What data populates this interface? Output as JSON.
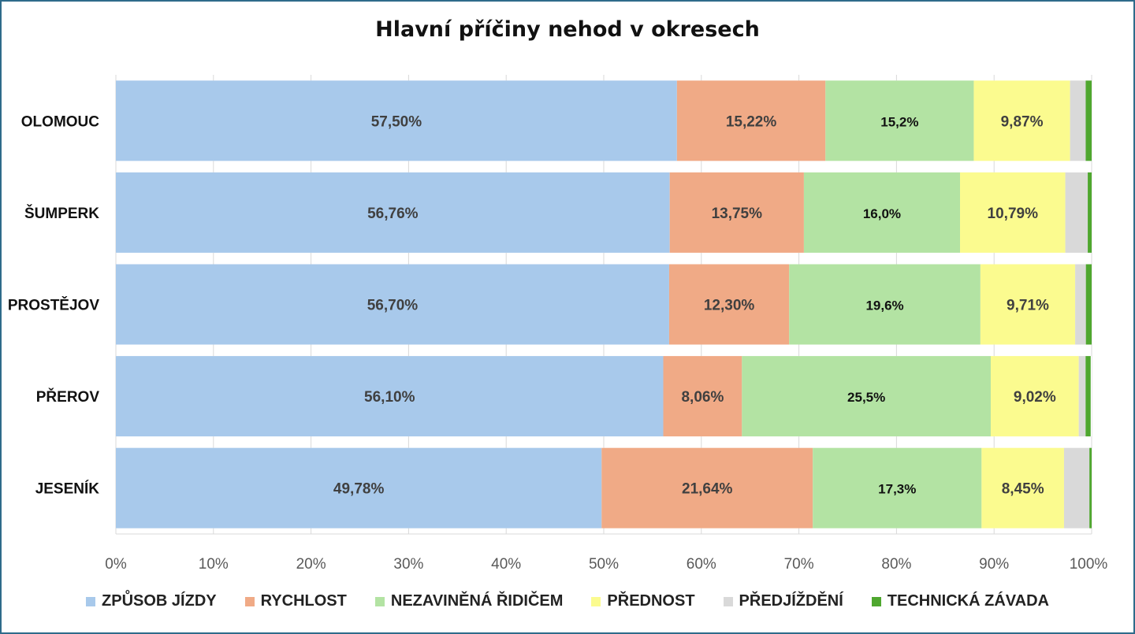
{
  "chart_data": {
    "type": "bar",
    "orientation": "horizontal",
    "stacked": "percent",
    "title": "Hlavní příčiny nehod v okresech",
    "categories": [
      "OLOMOUC",
      "ŠUMPERK",
      "PROSTĚJOV",
      "PŘEROV",
      "JESENÍK"
    ],
    "xlim": [
      0,
      100
    ],
    "x_ticks": [
      "0%",
      "10%",
      "20%",
      "30%",
      "40%",
      "50%",
      "60%",
      "70%",
      "80%",
      "90%",
      "100%"
    ],
    "grid": true,
    "legend_position": "bottom",
    "series": [
      {
        "name": "ZPŮSOB JÍZDY",
        "color": "#a8c9eb",
        "values": [
          57.5,
          56.76,
          56.7,
          56.1,
          49.78
        ],
        "labels": [
          "57,50%",
          "56,76%",
          "56,70%",
          "56,10%",
          "49,78%"
        ],
        "label_color": "#404040"
      },
      {
        "name": "RYCHLOST",
        "color": "#f0aa86",
        "values": [
          15.22,
          13.75,
          12.3,
          8.06,
          21.64
        ],
        "labels": [
          "15,22%",
          "13,75%",
          "12,30%",
          "8,06%",
          "21,64%"
        ],
        "label_color": "#404040"
      },
      {
        "name": "NEZAVINĚNÁ ŘIDIČEM",
        "color": "#b3e3a3",
        "values": [
          15.2,
          16.0,
          19.6,
          25.5,
          17.3
        ],
        "labels": [
          "15,2%",
          "16,0%",
          "19,6%",
          "25,5%",
          "17,3%"
        ],
        "label_color": "#111111"
      },
      {
        "name": "PŘEDNOST",
        "color": "#fbfb8f",
        "values": [
          9.87,
          10.79,
          9.71,
          9.02,
          8.45
        ],
        "labels": [
          "9,87%",
          "10,79%",
          "9,71%",
          "9,02%",
          "8,45%"
        ],
        "label_color": "#404040"
      },
      {
        "name": "PŘEDJÍŽDĚNÍ",
        "color": "#d9d9d9",
        "values": [
          1.6,
          2.3,
          1.1,
          0.7,
          2.6
        ],
        "labels": [
          "",
          "",
          "",
          "",
          ""
        ],
        "label_color": "#404040"
      },
      {
        "name": "TECHNICKÁ ZÁVADA",
        "color": "#4fa72f",
        "values": [
          0.61,
          0.4,
          0.59,
          0.52,
          0.23
        ],
        "labels": [
          "",
          "",
          "",
          "",
          ""
        ],
        "label_color": "#404040"
      }
    ]
  }
}
